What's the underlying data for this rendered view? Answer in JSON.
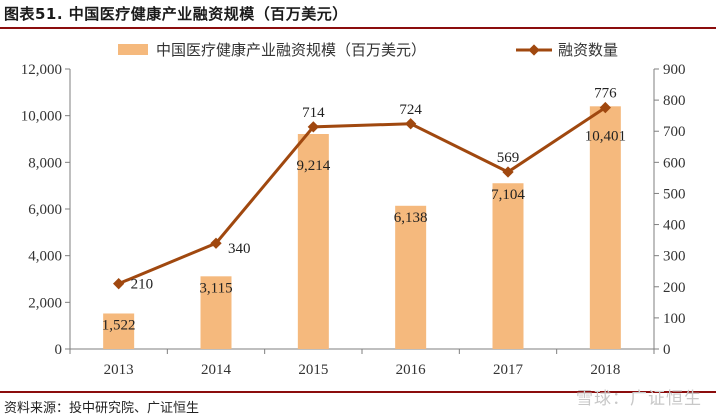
{
  "figure": {
    "title": "图表51.  中国医疗健康产业融资规模（百万美元）",
    "source": "资料来源：投中研究院、广证恒生",
    "watermark": "雪球：广证恒生"
  },
  "chart_data": {
    "type": "bar+line",
    "categories": [
      "2013",
      "2014",
      "2015",
      "2016",
      "2017",
      "2018"
    ],
    "series": [
      {
        "name": "中国医疗健康产业融资规模（百万美元）",
        "type": "bar",
        "axis": "left",
        "color": "#f5b97d",
        "values": [
          1522,
          3115,
          9214,
          6138,
          7104,
          10401
        ],
        "labels": [
          "1,522",
          "3,115",
          "9,214",
          "6,138",
          "7,104",
          "10,401"
        ]
      },
      {
        "name": "融资数量",
        "type": "line",
        "axis": "right",
        "color": "#a0480f",
        "values": [
          210,
          340,
          714,
          724,
          569,
          776
        ],
        "labels": [
          "210",
          "340",
          "714",
          "724",
          "569",
          "776"
        ]
      }
    ],
    "y_left": {
      "range": [
        0,
        12000
      ],
      "ticks": [
        0,
        2000,
        4000,
        6000,
        8000,
        10000,
        12000
      ],
      "tick_labels": [
        "0",
        "2,000",
        "4,000",
        "6,000",
        "8,000",
        "10,000",
        "12,000"
      ]
    },
    "y_right": {
      "range": [
        0,
        900
      ],
      "ticks": [
        0,
        100,
        200,
        300,
        400,
        500,
        600,
        700,
        800,
        900
      ],
      "tick_labels": [
        "0",
        "100",
        "200",
        "300",
        "400",
        "500",
        "600",
        "700",
        "800",
        "900"
      ]
    },
    "grid": false,
    "legend_position": "top"
  }
}
